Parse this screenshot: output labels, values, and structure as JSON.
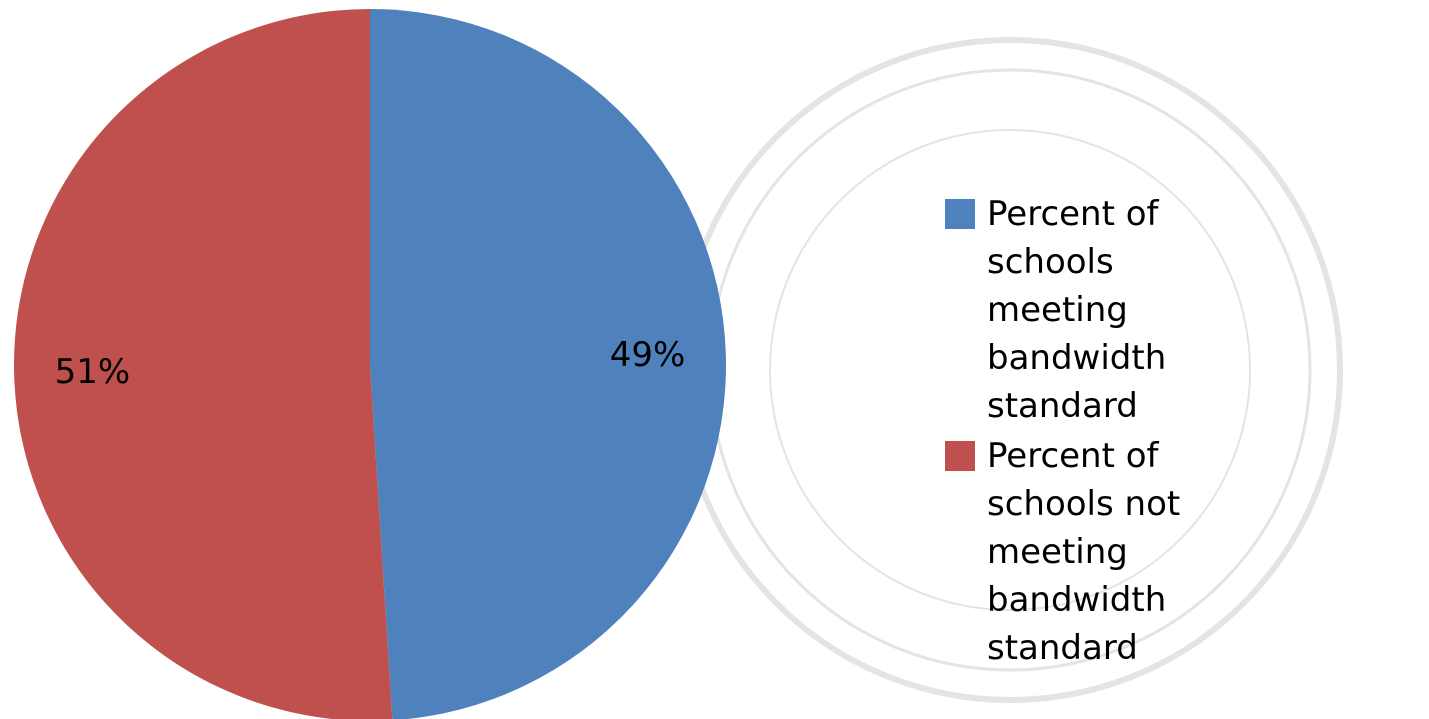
{
  "chart_data": {
    "type": "pie",
    "categories": [
      "Percent of schools meeting bandwidth standard",
      "Percent of schools not meeting bandwidth standard"
    ],
    "values": [
      49,
      51
    ],
    "value_labels": [
      "49%",
      "51%"
    ],
    "colors": [
      "#4f81bd",
      "#c0504d"
    ],
    "legend": "right"
  }
}
